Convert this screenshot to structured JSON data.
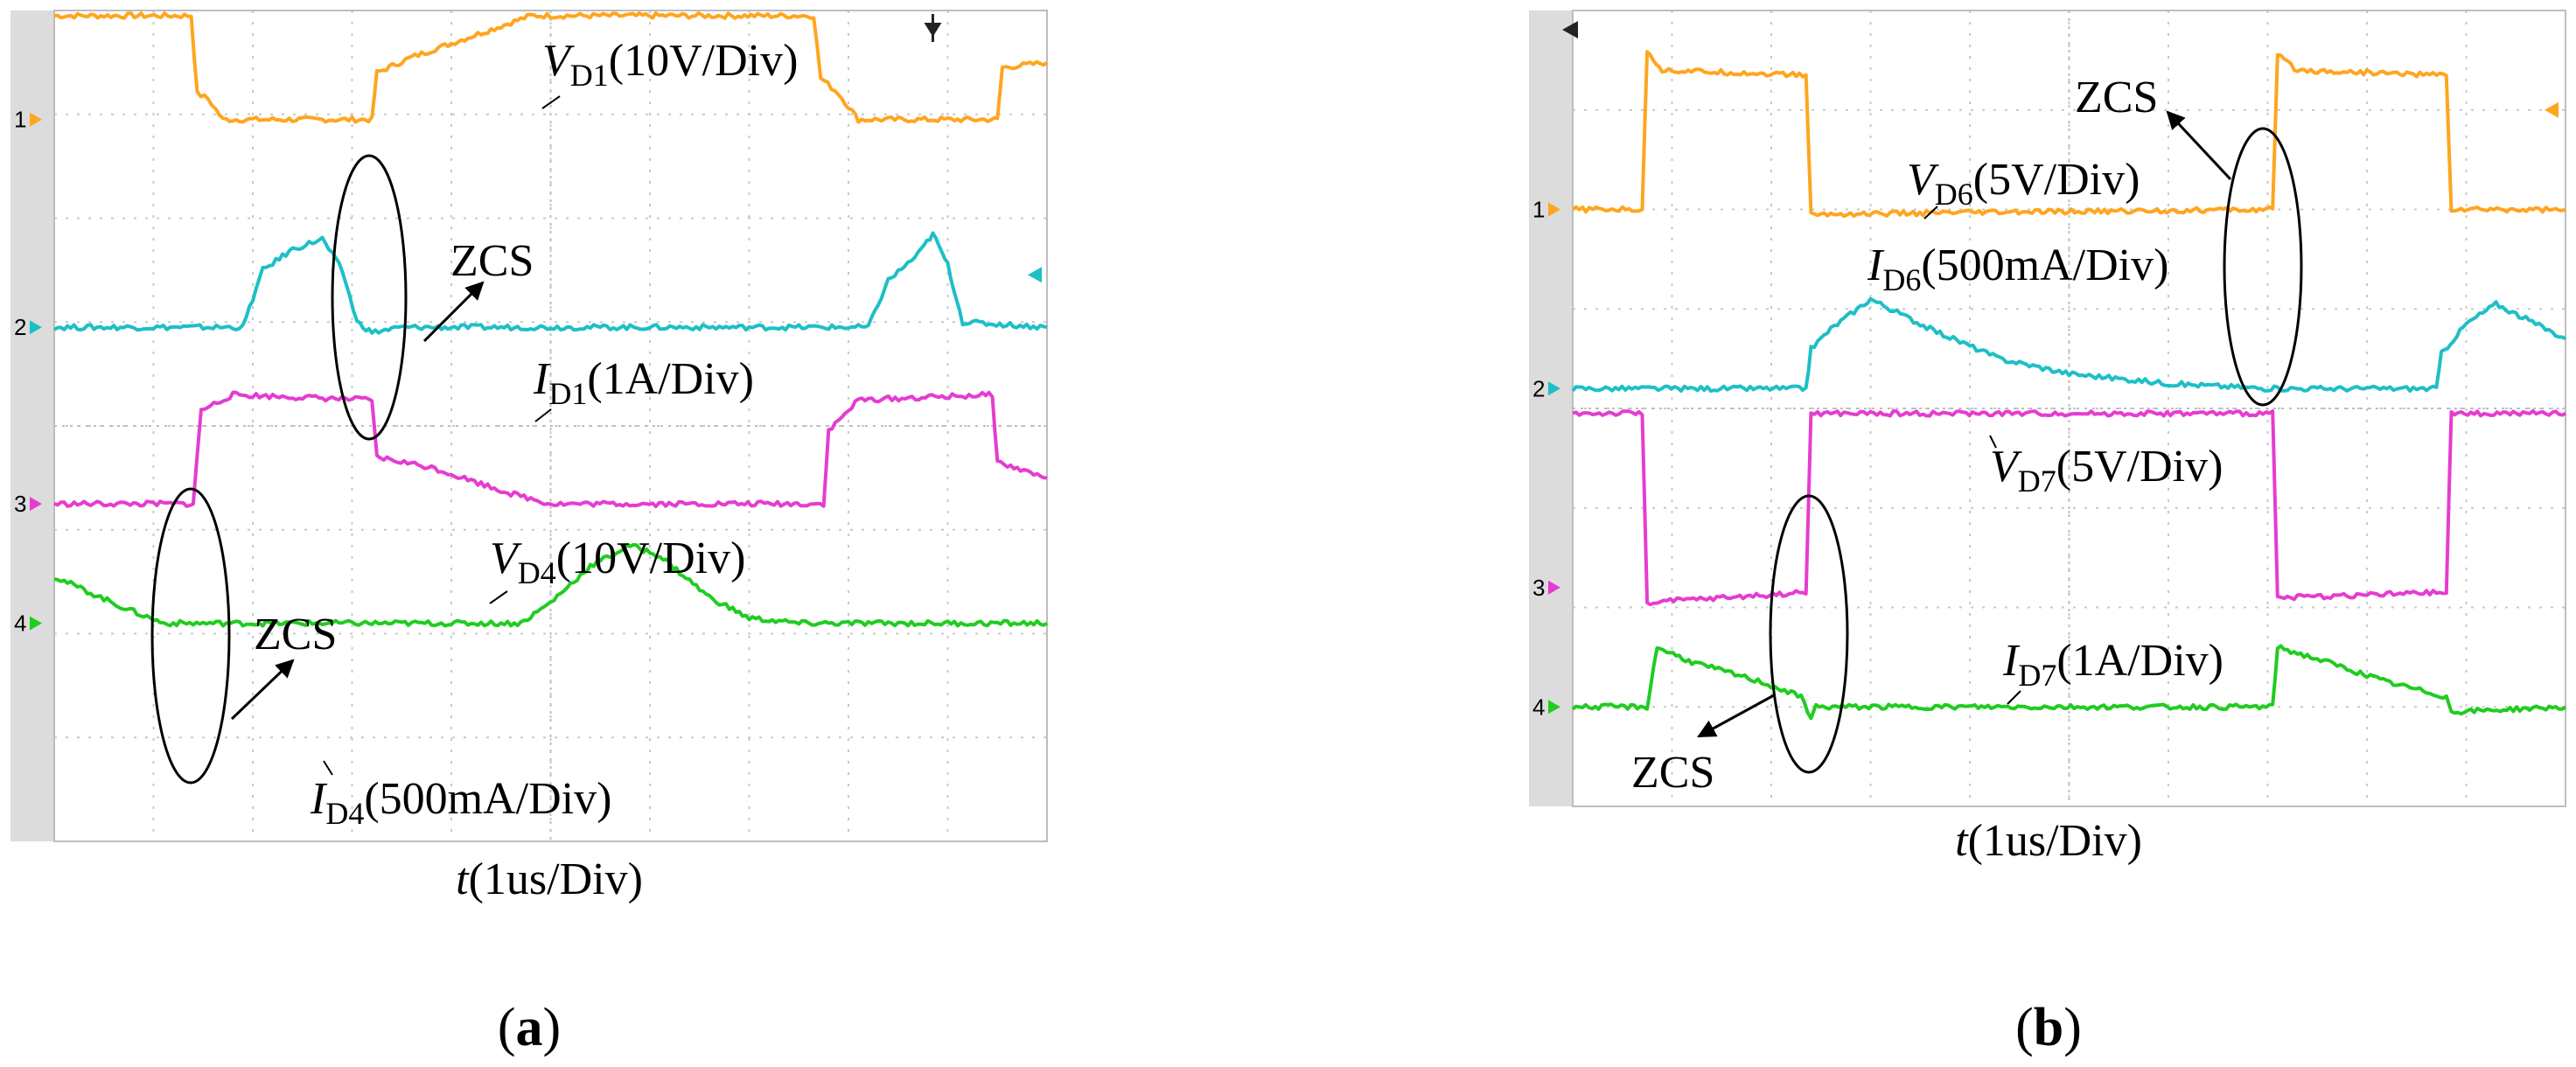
{
  "chart_data": [
    {
      "type": "line",
      "caption": "(a)",
      "xlabel": "t(1us/Div)",
      "grid": true,
      "grid_divisions": {
        "x": 10,
        "y": 8
      },
      "series": [
        {
          "channel": "1",
          "color": "#ffa51f",
          "level": 6.95,
          "amp": 1.0,
          "label": {
            "main": "V",
            "sub": "D1",
            "rest": "(10V/Div)"
          },
          "points": [
            [
              0,
              7.95
            ],
            [
              1.38,
              7.95
            ],
            [
              1.44,
              7.2
            ],
            [
              1.55,
              7.15
            ],
            [
              1.7,
              6.95
            ],
            [
              3.2,
              6.95
            ],
            [
              3.25,
              7.4
            ],
            [
              3.6,
              7.55
            ],
            [
              4.8,
              7.95
            ],
            [
              7.65,
              7.95
            ],
            [
              7.72,
              7.35
            ],
            [
              7.9,
              7.2
            ],
            [
              8.1,
              6.95
            ],
            [
              9.5,
              6.95
            ],
            [
              9.55,
              7.45
            ],
            [
              10,
              7.5
            ]
          ]
        },
        {
          "channel": "2",
          "color": "#1ebfc6",
          "level": 4.95,
          "amp": 1.0,
          "label": {
            "main": "I",
            "sub": "D1",
            "rest": "(1A/Div)"
          },
          "points": [
            [
              0,
              4.95
            ],
            [
              1.9,
              4.95
            ],
            [
              2.1,
              5.5
            ],
            [
              2.4,
              5.7
            ],
            [
              2.7,
              5.8
            ],
            [
              2.9,
              5.5
            ],
            [
              3.05,
              5.0
            ],
            [
              3.2,
              4.9
            ],
            [
              3.5,
              4.95
            ],
            [
              8.2,
              4.95
            ],
            [
              8.4,
              5.4
            ],
            [
              8.7,
              5.65
            ],
            [
              8.85,
              5.85
            ],
            [
              9.0,
              5.55
            ],
            [
              9.15,
              5.0
            ],
            [
              10,
              4.95
            ]
          ]
        },
        {
          "channel": "3",
          "color": "#e53cd1",
          "level": 3.25,
          "amp": 1.0,
          "label": {
            "main": "V",
            "sub": "D4",
            "rest": "(10V/Div)"
          },
          "points": [
            [
              0,
              3.25
            ],
            [
              1.4,
              3.25
            ],
            [
              1.48,
              4.15
            ],
            [
              1.8,
              4.3
            ],
            [
              3.2,
              4.25
            ],
            [
              3.25,
              3.7
            ],
            [
              3.8,
              3.6
            ],
            [
              4.6,
              3.35
            ],
            [
              5.0,
              3.25
            ],
            [
              7.75,
              3.25
            ],
            [
              7.8,
              3.95
            ],
            [
              8.1,
              4.25
            ],
            [
              9.45,
              4.3
            ],
            [
              9.5,
              3.65
            ],
            [
              10,
              3.5
            ]
          ]
        },
        {
          "channel": "4",
          "color": "#20cc20",
          "level": 2.1,
          "amp": 1.0,
          "label": {
            "main": "I",
            "sub": "D4",
            "rest": "(500mA/Div)"
          },
          "points": [
            [
              0,
              2.55
            ],
            [
              0.7,
              2.25
            ],
            [
              1.1,
              2.1
            ],
            [
              4.7,
              2.1
            ],
            [
              5.0,
              2.3
            ],
            [
              5.4,
              2.65
            ],
            [
              5.8,
              2.85
            ],
            [
              6.1,
              2.75
            ],
            [
              6.6,
              2.35
            ],
            [
              7.0,
              2.15
            ],
            [
              7.5,
              2.1
            ],
            [
              10,
              2.1
            ]
          ]
        }
      ],
      "annotations": [
        {
          "text": "ZCS"
        },
        {
          "text": "ZCS"
        }
      ]
    },
    {
      "type": "line",
      "caption": "(b)",
      "xlabel": "t(1us/Div)",
      "grid": true,
      "grid_divisions": {
        "x": 10,
        "y": 8
      },
      "series": [
        {
          "channel": "1",
          "color": "#ffa51f",
          "level": 6.0,
          "amp": 1.0,
          "label": {
            "main": "V",
            "sub": "D6",
            "rest": "(5V/Div)"
          },
          "points": [
            [
              0,
              6.0
            ],
            [
              0.7,
              6.0
            ],
            [
              0.75,
              7.6
            ],
            [
              0.9,
              7.4
            ],
            [
              2.35,
              7.35
            ],
            [
              2.4,
              5.95
            ],
            [
              7.05,
              6.0
            ],
            [
              7.1,
              7.55
            ],
            [
              7.3,
              7.4
            ],
            [
              8.8,
              7.35
            ],
            [
              8.85,
              6.0
            ],
            [
              10,
              6.0
            ]
          ]
        },
        {
          "channel": "2",
          "color": "#1ebfc6",
          "level": 4.2,
          "amp": 1.0,
          "label": {
            "main": "I",
            "sub": "D6",
            "rest": "(500mA/Div)"
          },
          "points": [
            [
              0,
              4.2
            ],
            [
              2.35,
              4.2
            ],
            [
              2.4,
              4.6
            ],
            [
              2.6,
              4.8
            ],
            [
              3.0,
              5.1
            ],
            [
              3.6,
              4.8
            ],
            [
              4.3,
              4.5
            ],
            [
              5.0,
              4.35
            ],
            [
              6.0,
              4.25
            ],
            [
              7.0,
              4.2
            ],
            [
              8.7,
              4.2
            ],
            [
              8.75,
              4.55
            ],
            [
              9.0,
              4.85
            ],
            [
              9.3,
              5.05
            ],
            [
              9.6,
              4.9
            ],
            [
              10,
              4.7
            ]
          ]
        },
        {
          "channel": "3",
          "color": "#e53cd1",
          "level": 2.2,
          "amp": 1.0,
          "label": {
            "main": "V",
            "sub": "D7",
            "rest": "(5V/Div)"
          },
          "points": [
            [
              0,
              3.95
            ],
            [
              0.7,
              3.95
            ],
            [
              0.75,
              2.05
            ],
            [
              2.35,
              2.15
            ],
            [
              2.4,
              3.95
            ],
            [
              7.05,
              3.95
            ],
            [
              7.1,
              2.1
            ],
            [
              8.8,
              2.15
            ],
            [
              8.85,
              3.95
            ],
            [
              10,
              3.95
            ]
          ]
        },
        {
          "channel": "4",
          "color": "#20cc20",
          "level": 1.0,
          "amp": 1.0,
          "label": {
            "main": "I",
            "sub": "D7",
            "rest": "(1A/Div)"
          },
          "points": [
            [
              0,
              1.0
            ],
            [
              0.75,
              1.0
            ],
            [
              0.85,
              1.6
            ],
            [
              1.2,
              1.45
            ],
            [
              1.9,
              1.25
            ],
            [
              2.3,
              1.1
            ],
            [
              2.4,
              0.9
            ],
            [
              2.45,
              1.0
            ],
            [
              7.05,
              1.0
            ],
            [
              7.1,
              1.6
            ],
            [
              7.6,
              1.45
            ],
            [
              8.2,
              1.25
            ],
            [
              8.8,
              1.1
            ],
            [
              8.85,
              0.95
            ],
            [
              10,
              1.0
            ]
          ]
        }
      ],
      "annotations": [
        {
          "text": "ZCS"
        },
        {
          "text": "ZCS"
        }
      ]
    }
  ]
}
